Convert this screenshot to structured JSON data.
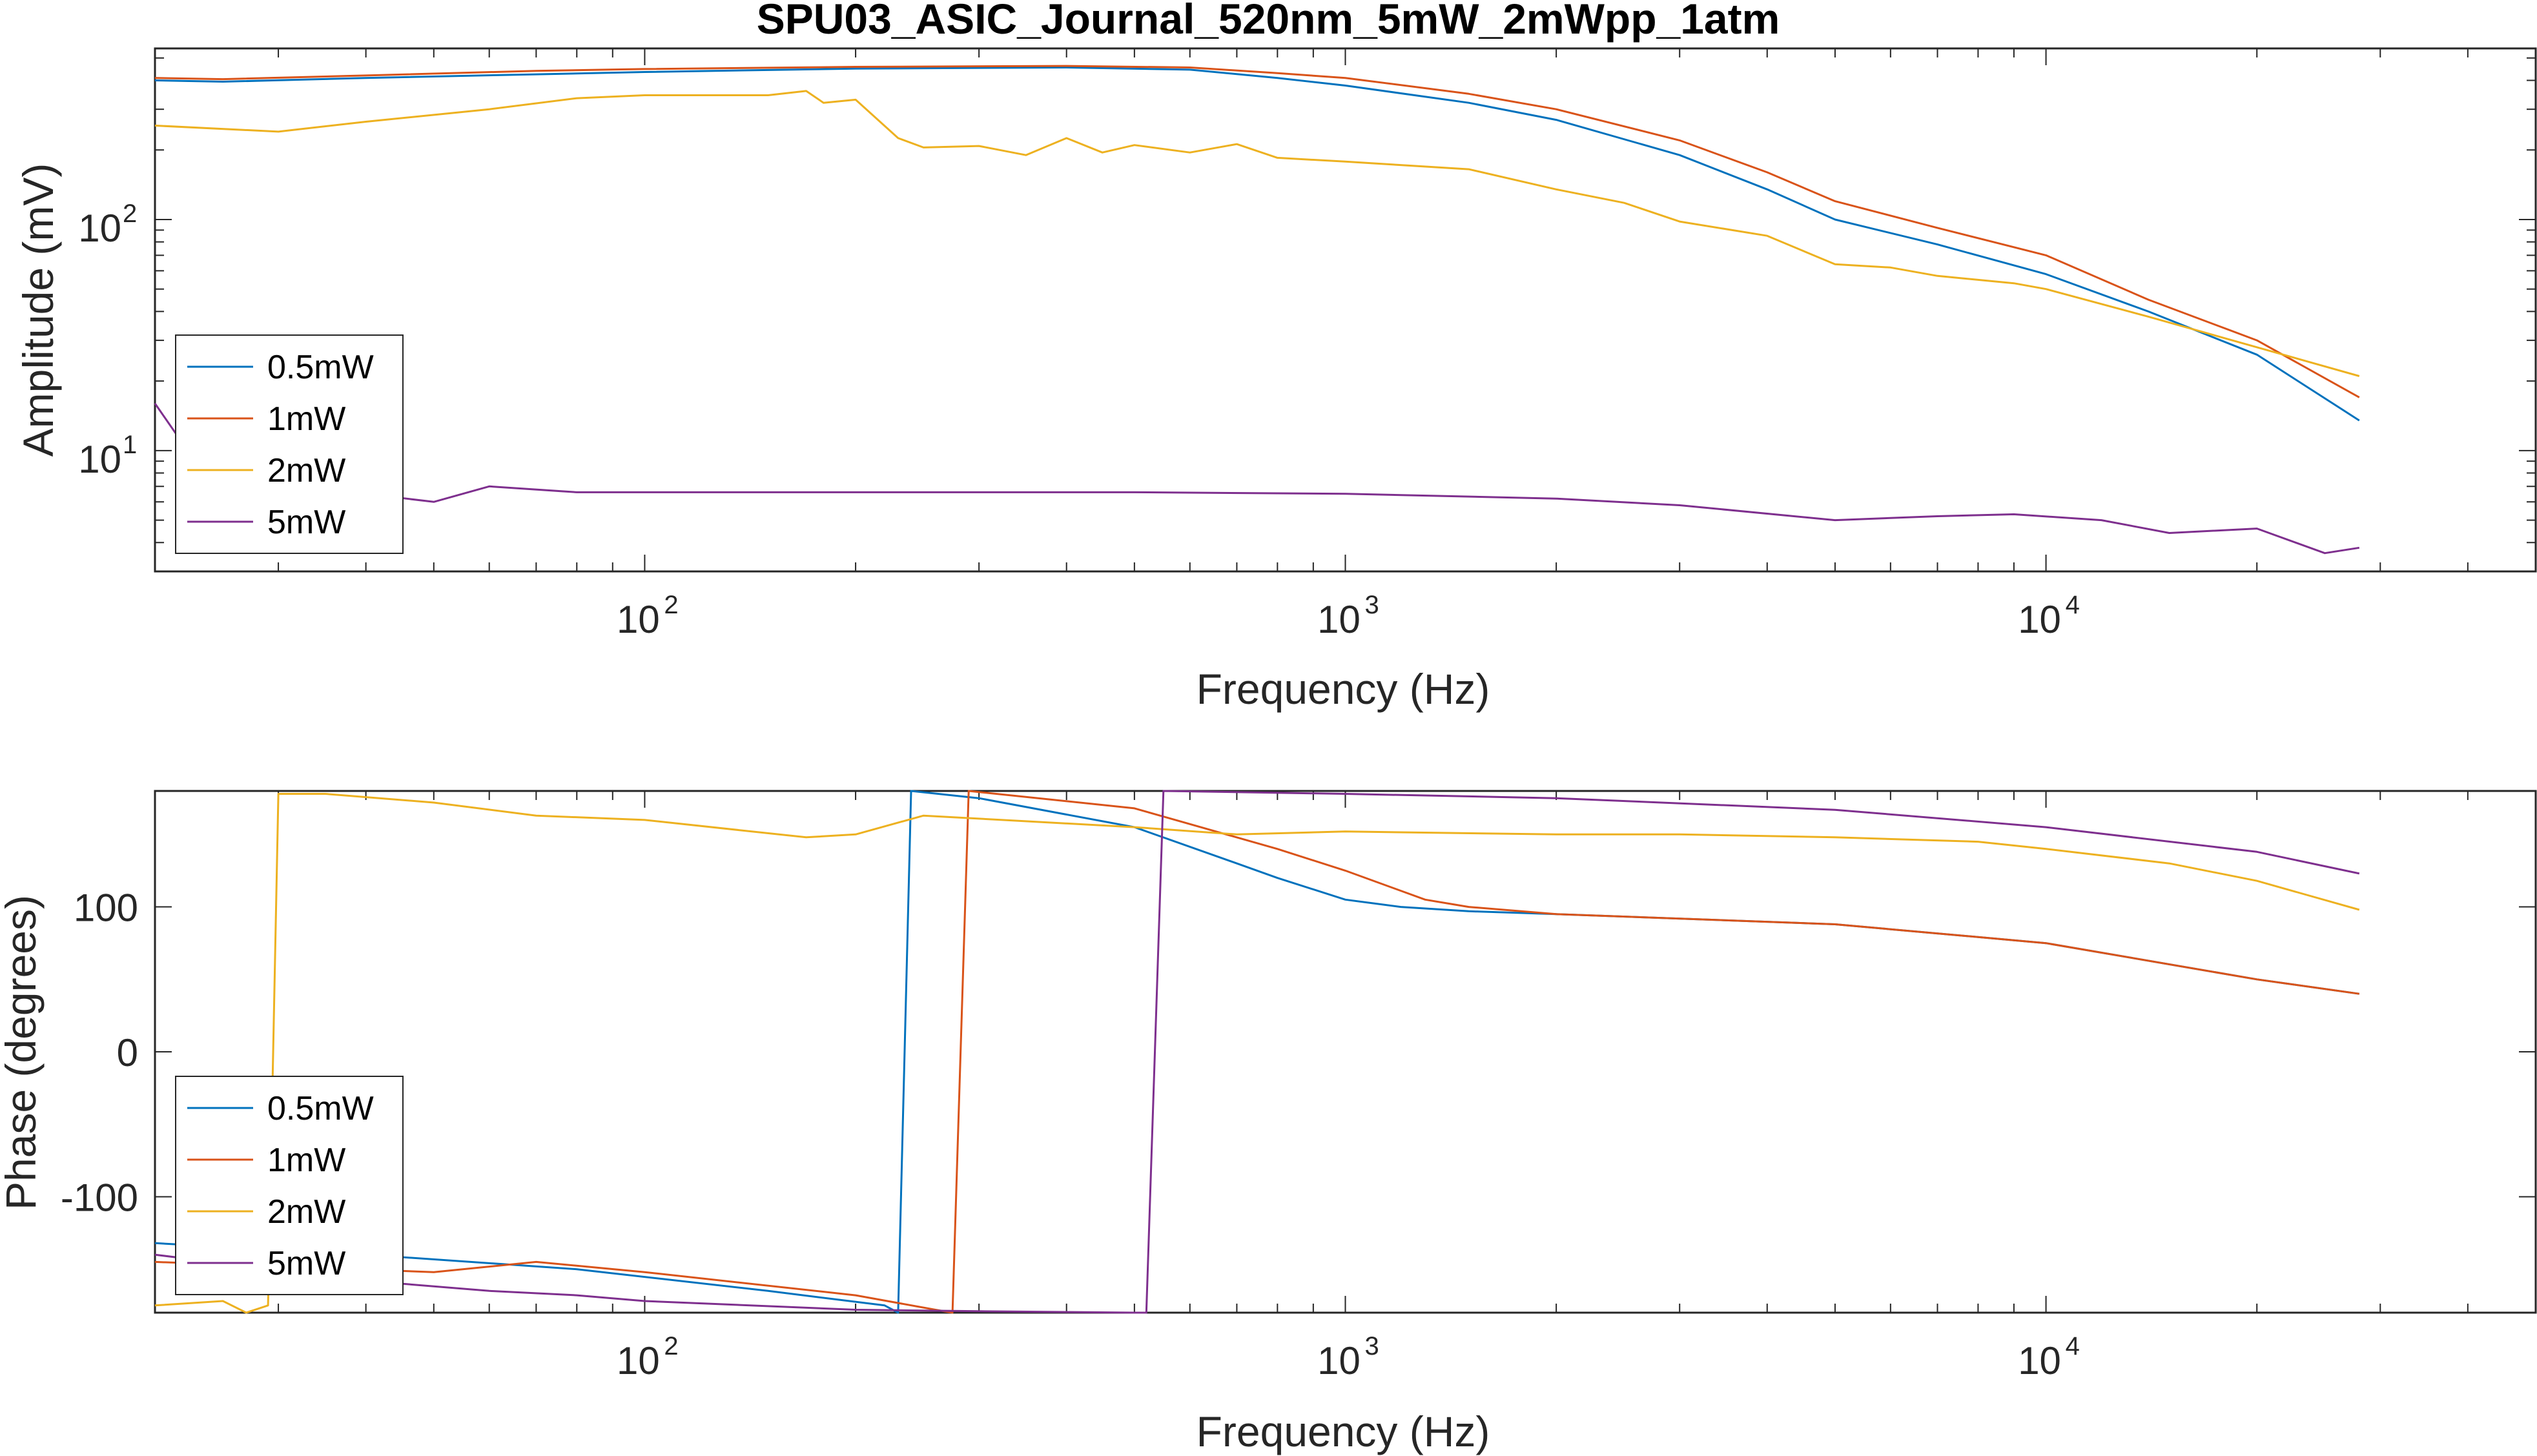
{
  "chart_data": [
    {
      "type": "line",
      "title": "SPU03_ASIC_Journal_520nm_5mW_2mWpp_1atm",
      "xlabel": "Frequency (Hz)",
      "ylabel": "Amplitude (mV)",
      "xscale": "log",
      "yscale": "log",
      "xlim": [
        20,
        50000
      ],
      "ylim": [
        3,
        550
      ],
      "xticks": [
        {
          "base": "10",
          "exp": "2",
          "value": 100
        },
        {
          "base": "10",
          "exp": "3",
          "value": 1000
        },
        {
          "base": "10",
          "exp": "4",
          "value": 10000
        }
      ],
      "yticks": [
        {
          "base": "10",
          "exp": "1",
          "value": 10
        },
        {
          "base": "10",
          "exp": "2",
          "value": 100
        }
      ],
      "legend_position": "bottom-left",
      "grid": false,
      "series": [
        {
          "name": "0.5mW",
          "color": "#0072BD",
          "x": [
            20,
            25,
            40,
            70,
            100,
            200,
            400,
            600,
            800,
            1000,
            1500,
            2000,
            3000,
            4000,
            5000,
            7000,
            10000,
            14000,
            20000,
            28000
          ],
          "y": [
            400,
            395,
            410,
            425,
            435,
            450,
            455,
            445,
            410,
            380,
            320,
            270,
            190,
            135,
            100,
            78,
            58,
            40,
            26,
            13.5
          ]
        },
        {
          "name": "1mW",
          "color": "#D95319",
          "x": [
            20,
            25,
            40,
            70,
            100,
            200,
            400,
            600,
            800,
            1000,
            1500,
            2000,
            3000,
            4000,
            5000,
            7000,
            10000,
            14000,
            20000,
            28000
          ],
          "y": [
            410,
            405,
            420,
            440,
            448,
            458,
            462,
            455,
            430,
            410,
            350,
            300,
            220,
            160,
            120,
            92,
            70,
            45,
            30,
            17
          ]
        },
        {
          "name": "2mW",
          "color": "#EDB120",
          "x": [
            20,
            30,
            40,
            60,
            80,
            100,
            150,
            170,
            180,
            200,
            230,
            250,
            300,
            350,
            400,
            450,
            500,
            600,
            700,
            800,
            1000,
            1500,
            2000,
            2500,
            3000,
            4000,
            5000,
            6000,
            7000,
            9000,
            10000,
            14000,
            20000,
            28000
          ],
          "y": [
            255,
            240,
            265,
            300,
            335,
            345,
            345,
            360,
            320,
            330,
            225,
            205,
            208,
            190,
            225,
            195,
            210,
            195,
            212,
            185,
            178,
            165,
            135,
            118,
            98,
            85,
            64,
            62,
            57,
            53,
            50,
            38,
            28,
            21
          ]
        },
        {
          "name": "5mW",
          "color": "#7E2F8E",
          "x": [
            20,
            24,
            30,
            40,
            50,
            60,
            80,
            100,
            200,
            500,
            1000,
            2000,
            3000,
            5000,
            7000,
            9000,
            12000,
            15000,
            20000,
            25000,
            28000
          ],
          "y": [
            16,
            7.2,
            6.8,
            6.5,
            6.0,
            7.0,
            6.6,
            6.6,
            6.6,
            6.6,
            6.5,
            6.2,
            5.8,
            5.0,
            5.2,
            5.3,
            5.0,
            4.4,
            4.6,
            3.6,
            3.8
          ]
        }
      ]
    },
    {
      "type": "line",
      "title": "",
      "xlabel": "Frequency (Hz)",
      "ylabel": "Phase (degrees)",
      "xscale": "log",
      "yscale": "linear",
      "xlim": [
        20,
        50000
      ],
      "ylim": [
        -180,
        180
      ],
      "xticks": [
        {
          "base": "10",
          "exp": "2",
          "value": 100
        },
        {
          "base": "10",
          "exp": "3",
          "value": 1000
        },
        {
          "base": "10",
          "exp": "4",
          "value": 10000
        }
      ],
      "yticks": [
        {
          "label": "100",
          "value": 100
        },
        {
          "label": "0",
          "value": 0
        },
        {
          "label": "-100",
          "value": -100
        }
      ],
      "legend_position": "bottom-left",
      "grid": false,
      "series": [
        {
          "name": "0.5mW",
          "color": "#0072BD",
          "x": [
            20,
            40,
            80,
            150,
            220,
            230,
            240,
            300,
            500,
            700,
            800,
            1000,
            1200,
            1500,
            2000,
            5000,
            10000,
            20000,
            28000
          ],
          "y": [
            -132,
            -140,
            -150,
            -165,
            -175,
            -180,
            180,
            175,
            155,
            130,
            120,
            105,
            100,
            97,
            95,
            88,
            75,
            50,
            40
          ]
        },
        {
          "name": "1mW",
          "color": "#D95319",
          "x": [
            20,
            50,
            70,
            100,
            200,
            260,
            275,
            290,
            500,
            800,
            1000,
            1300,
            1500,
            2000,
            5000,
            10000,
            20000,
            28000
          ],
          "y": [
            -145,
            -152,
            -145,
            -152,
            -168,
            -178,
            -180,
            180,
            168,
            140,
            125,
            105,
            100,
            95,
            88,
            75,
            50,
            40
          ]
        },
        {
          "name": "2mW",
          "color": "#EDB120",
          "x": [
            20,
            25,
            27,
            29,
            30,
            35,
            50,
            70,
            100,
            170,
            200,
            250,
            500,
            700,
            1000,
            2000,
            3000,
            5000,
            8000,
            10000,
            15000,
            20000,
            28000
          ],
          "y": [
            -175,
            -172,
            -180,
            -175,
            178,
            178,
            172,
            163,
            160,
            148,
            150,
            163,
            155,
            150,
            152,
            150,
            150,
            148,
            145,
            140,
            130,
            118,
            98
          ]
        },
        {
          "name": "5mW",
          "color": "#7E2F8E",
          "x": [
            20,
            40,
            60,
            80,
            100,
            200,
            300,
            500,
            520,
            550,
            1000,
            2000,
            5000,
            10000,
            20000,
            28000
          ],
          "y": [
            -140,
            -158,
            -165,
            -168,
            -172,
            -178,
            -179,
            -180,
            -180,
            180,
            178,
            175,
            167,
            155,
            138,
            123
          ]
        }
      ]
    }
  ]
}
